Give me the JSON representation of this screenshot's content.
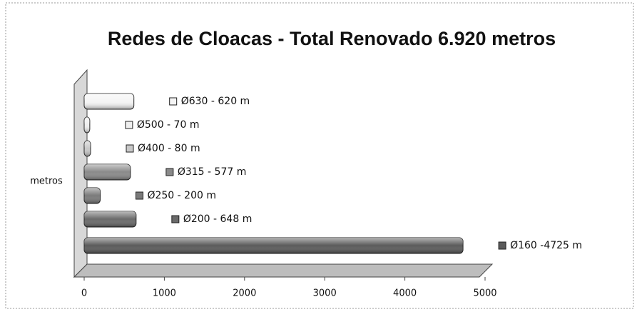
{
  "chart_data": {
    "type": "bar",
    "orientation": "horizontal",
    "title": "Redes de Cloacas - Total Renovado 6.920 metros",
    "y_label": "metros",
    "categories": [
      "Ø630 - 620 m",
      "Ø500 - 70 m",
      "Ø400 - 80 m",
      "Ø315 - 577 m",
      "Ø250 - 200 m",
      "Ø200 - 648 m",
      "Ø160 -4725 m"
    ],
    "values": [
      620,
      70,
      80,
      577,
      200,
      648,
      4725
    ],
    "colors": [
      "#f4f4f4",
      "#eeeeee",
      "#c8c8c8",
      "#8a8a8a",
      "#7a7a7a",
      "#6a6a6a",
      "#5a5a5a"
    ],
    "xlim": [
      0,
      5000
    ],
    "xticks": [
      0,
      1000,
      2000,
      3000,
      4000,
      5000
    ],
    "grid": false
  }
}
